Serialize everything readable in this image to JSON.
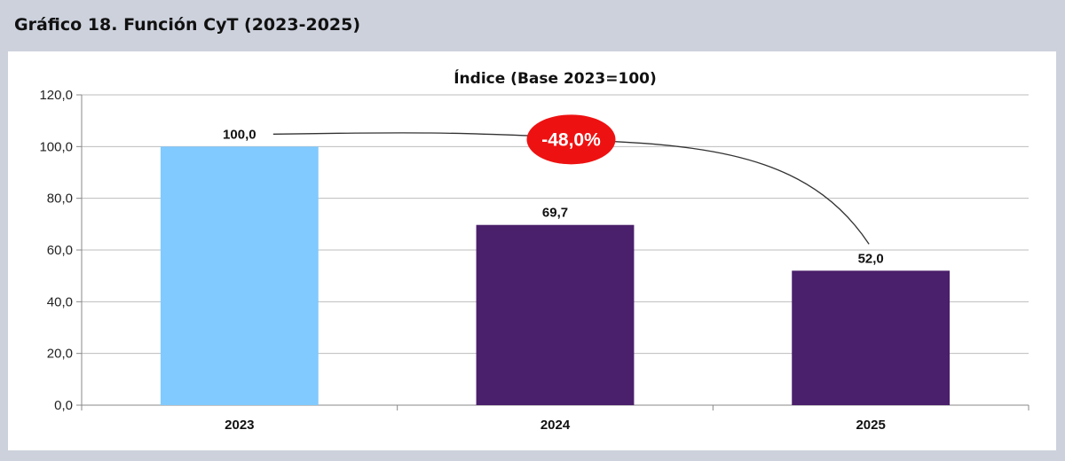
{
  "header": {
    "title": "Gráfico 18. Función CyT (2023-2025)"
  },
  "chart_data": {
    "type": "bar",
    "title": "Índice (Base 2023=100)",
    "categories": [
      "2023",
      "2024",
      "2025"
    ],
    "values": [
      100.0,
      69.7,
      52.0
    ],
    "value_labels": [
      "100,0",
      "69,7",
      "52,0"
    ],
    "bar_colors": [
      "#80caff",
      "#4a1f6b",
      "#4a1f6b"
    ],
    "ylim": [
      0,
      120
    ],
    "y_ticks": [
      0,
      20,
      40,
      60,
      80,
      100,
      120
    ],
    "y_tick_labels": [
      "0,0",
      "20,0",
      "40,0",
      "60,0",
      "80,0",
      "100,0",
      "120,0"
    ],
    "grid": true,
    "xlabel": "",
    "ylabel": "",
    "annotation": {
      "text": "-48,0%",
      "color": "#ee1111",
      "from_category": "2023",
      "to_category": "2025"
    }
  }
}
